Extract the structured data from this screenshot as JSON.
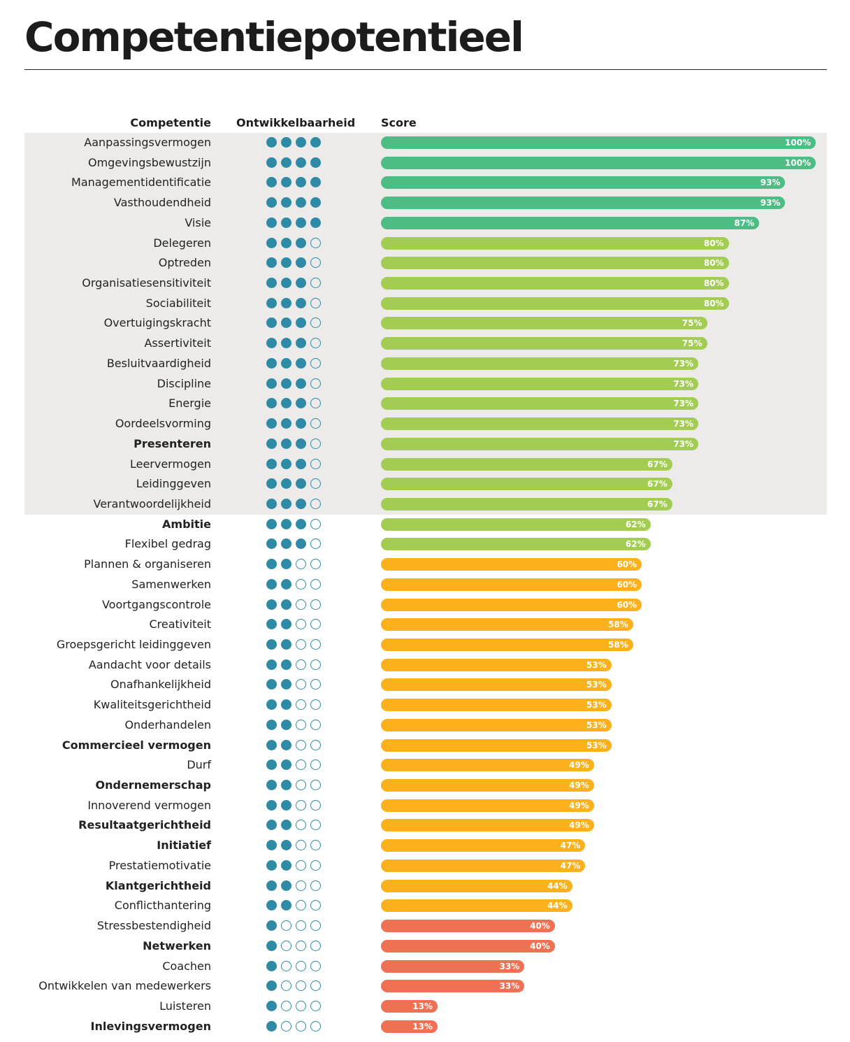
{
  "title": "Competentiepotentieel",
  "colors": {
    "band": "#ecebea",
    "dot": "#2f8aa5",
    "level4": "#4dbd85",
    "level3": "#a2cd52",
    "level2": "#fbb11c",
    "level1": "#ee7153"
  },
  "chart_data": {
    "type": "bar",
    "orientation": "horizontal",
    "title": "Competentiepotentieel",
    "columns": {
      "competence": "Competentie",
      "development": "Ontwikkelbaarheid",
      "score": "Score"
    },
    "xlim": [
      0,
      100
    ],
    "unit": "%",
    "highlight_band": "Aanpassingsvermogen to Verantwoordelijkheid",
    "rows": [
      {
        "name": "Aanpassingsvermogen",
        "bold": false,
        "dev": 4,
        "score": 100,
        "label": "100%"
      },
      {
        "name": "Omgevingsbewustzijn",
        "bold": false,
        "dev": 4,
        "score": 100,
        "label": "100%"
      },
      {
        "name": "Managementidentificatie",
        "bold": false,
        "dev": 4,
        "score": 93,
        "label": "93%"
      },
      {
        "name": "Vasthoudendheid",
        "bold": false,
        "dev": 4,
        "score": 93,
        "label": "93%"
      },
      {
        "name": "Visie",
        "bold": false,
        "dev": 4,
        "score": 87,
        "label": "87%"
      },
      {
        "name": "Delegeren",
        "bold": false,
        "dev": 3,
        "score": 80,
        "label": "80%"
      },
      {
        "name": "Optreden",
        "bold": false,
        "dev": 3,
        "score": 80,
        "label": "80%"
      },
      {
        "name": "Organisatiesensitiviteit",
        "bold": false,
        "dev": 3,
        "score": 80,
        "label": "80%"
      },
      {
        "name": "Sociabiliteit",
        "bold": false,
        "dev": 3,
        "score": 80,
        "label": "80%"
      },
      {
        "name": "Overtuigingskracht",
        "bold": false,
        "dev": 3,
        "score": 75,
        "label": "75%"
      },
      {
        "name": "Assertiviteit",
        "bold": false,
        "dev": 3,
        "score": 75,
        "label": "75%"
      },
      {
        "name": "Besluitvaardigheid",
        "bold": false,
        "dev": 3,
        "score": 73,
        "label": "73%"
      },
      {
        "name": "Discipline",
        "bold": false,
        "dev": 3,
        "score": 73,
        "label": "73%"
      },
      {
        "name": "Energie",
        "bold": false,
        "dev": 3,
        "score": 73,
        "label": "73%"
      },
      {
        "name": "Oordeelsvorming",
        "bold": false,
        "dev": 3,
        "score": 73,
        "label": "73%"
      },
      {
        "name": "Presenteren",
        "bold": true,
        "dev": 3,
        "score": 73,
        "label": "73%"
      },
      {
        "name": "Leervermogen",
        "bold": false,
        "dev": 3,
        "score": 67,
        "label": "67%"
      },
      {
        "name": "Leidinggeven",
        "bold": false,
        "dev": 3,
        "score": 67,
        "label": "67%"
      },
      {
        "name": "Verantwoordelijkheid",
        "bold": false,
        "dev": 3,
        "score": 67,
        "label": "67%"
      },
      {
        "name": "Ambitie",
        "bold": true,
        "dev": 3,
        "score": 62,
        "label": "62%"
      },
      {
        "name": "Flexibel gedrag",
        "bold": false,
        "dev": 3,
        "score": 62,
        "label": "62%"
      },
      {
        "name": "Plannen & organiseren",
        "bold": false,
        "dev": 2,
        "score": 60,
        "label": "60%"
      },
      {
        "name": "Samenwerken",
        "bold": false,
        "dev": 2,
        "score": 60,
        "label": "60%"
      },
      {
        "name": "Voortgangscontrole",
        "bold": false,
        "dev": 2,
        "score": 60,
        "label": "60%"
      },
      {
        "name": "Creativiteit",
        "bold": false,
        "dev": 2,
        "score": 58,
        "label": "58%"
      },
      {
        "name": "Groepsgericht leidinggeven",
        "bold": false,
        "dev": 2,
        "score": 58,
        "label": "58%"
      },
      {
        "name": "Aandacht voor details",
        "bold": false,
        "dev": 2,
        "score": 53,
        "label": "53%"
      },
      {
        "name": "Onafhankelijkheid",
        "bold": false,
        "dev": 2,
        "score": 53,
        "label": "53%"
      },
      {
        "name": "Kwaliteitsgerichtheid",
        "bold": false,
        "dev": 2,
        "score": 53,
        "label": "53%"
      },
      {
        "name": "Onderhandelen",
        "bold": false,
        "dev": 2,
        "score": 53,
        "label": "53%"
      },
      {
        "name": "Commercieel vermogen",
        "bold": true,
        "dev": 2,
        "score": 53,
        "label": "53%"
      },
      {
        "name": "Durf",
        "bold": false,
        "dev": 2,
        "score": 49,
        "label": "49%"
      },
      {
        "name": "Ondernemerschap",
        "bold": true,
        "dev": 2,
        "score": 49,
        "label": "49%"
      },
      {
        "name": "Innoverend vermogen",
        "bold": false,
        "dev": 2,
        "score": 49,
        "label": "49%"
      },
      {
        "name": "Resultaatgerichtheid",
        "bold": true,
        "dev": 2,
        "score": 49,
        "label": "49%"
      },
      {
        "name": "Initiatief",
        "bold": true,
        "dev": 2,
        "score": 47,
        "label": "47%"
      },
      {
        "name": "Prestatiemotivatie",
        "bold": false,
        "dev": 2,
        "score": 47,
        "label": "47%"
      },
      {
        "name": "Klantgerichtheid",
        "bold": true,
        "dev": 2,
        "score": 44,
        "label": "44%"
      },
      {
        "name": "Conflicthantering",
        "bold": false,
        "dev": 2,
        "score": 44,
        "label": "44%"
      },
      {
        "name": "Stressbestendigheid",
        "bold": false,
        "dev": 1,
        "score": 40,
        "label": "40%"
      },
      {
        "name": "Netwerken",
        "bold": true,
        "dev": 1,
        "score": 40,
        "label": "40%"
      },
      {
        "name": "Coachen",
        "bold": false,
        "dev": 1,
        "score": 33,
        "label": "33%"
      },
      {
        "name": "Ontwikkelen van medewerkers",
        "bold": false,
        "dev": 1,
        "score": 33,
        "label": "33%"
      },
      {
        "name": "Luisteren",
        "bold": false,
        "dev": 1,
        "score": 13,
        "label": "13%"
      },
      {
        "name": "Inlevingsvermogen",
        "bold": true,
        "dev": 1,
        "score": 13,
        "label": "13%"
      }
    ]
  }
}
